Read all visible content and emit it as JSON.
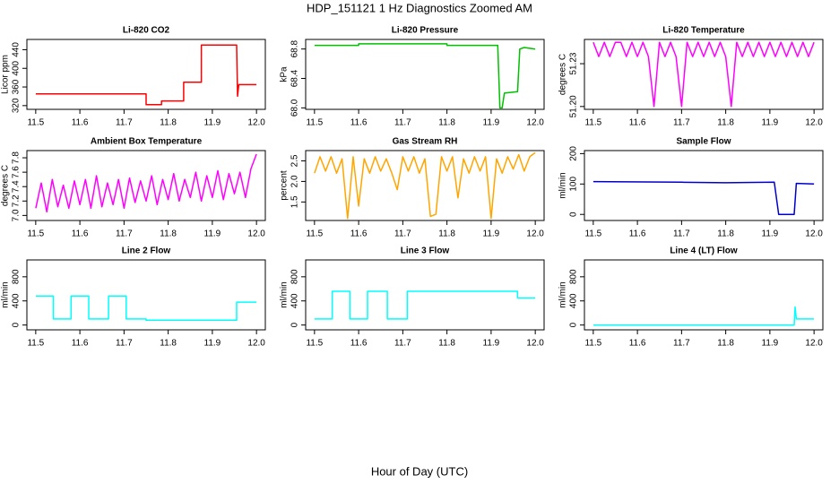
{
  "title": "HDP_151121  1 Hz Diagnostics Zoomed AM",
  "xlabel": "Hour of Day (UTC)",
  "chart_data": [
    {
      "type": "line",
      "title": "Li-820 CO2",
      "ylabel": "Licor ppm",
      "color": "#ff0000",
      "x": [
        11.5,
        11.75,
        11.75,
        11.785,
        11.785,
        11.835,
        11.835,
        11.875,
        11.875,
        11.955,
        11.957,
        11.96,
        12.0
      ],
      "values": [
        345,
        345,
        322,
        322,
        330,
        330,
        370,
        370,
        450,
        450,
        340,
        365,
        365
      ],
      "xlim": [
        11.48,
        12.02
      ],
      "ylim": [
        312,
        462
      ],
      "xticks": [
        11.5,
        11.6,
        11.7,
        11.8,
        11.9,
        {
          "value": 12.0,
          "label": "12.0"
        }
      ],
      "yticks": [
        320,
        360,
        400,
        440
      ]
    },
    {
      "type": "line",
      "title": "Li-820 Pressure",
      "ylabel": "kPa",
      "color": "#00c000",
      "x": [
        11.5,
        11.6,
        11.6,
        11.8,
        11.8,
        11.915,
        11.92,
        11.925,
        11.93,
        11.96,
        11.965,
        11.975,
        12.0
      ],
      "values": [
        68.85,
        68.85,
        68.87,
        68.87,
        68.85,
        68.85,
        68.0,
        68.0,
        68.2,
        68.22,
        68.8,
        68.82,
        68.8
      ],
      "xlim": [
        11.48,
        12.02
      ],
      "ylim": [
        67.98,
        68.93
      ],
      "xticks": [
        11.5,
        11.6,
        11.7,
        11.8,
        11.9,
        {
          "value": 12.0,
          "label": "12.0"
        }
      ],
      "yticks": [
        {
          "value": 68.0,
          "label": "68.0"
        },
        68.4,
        68.8
      ]
    },
    {
      "type": "line",
      "title": "Li-820 Temperature",
      "ylabel": "degrees C",
      "color": "#ff00ff",
      "x": [
        11.5,
        11.5125,
        11.525,
        11.5375,
        11.55,
        11.5625,
        11.575,
        11.5875,
        11.6,
        11.6125,
        11.625,
        11.6375,
        11.65,
        11.6625,
        11.675,
        11.6875,
        11.7,
        11.7125,
        11.725,
        11.7375,
        11.75,
        11.7625,
        11.775,
        11.7875,
        11.8,
        11.8125,
        11.825,
        11.8375,
        11.85,
        11.8625,
        11.875,
        11.8875,
        11.9,
        11.9125,
        11.925,
        11.9375,
        11.95,
        11.9625,
        11.975,
        11.9875,
        12.0
      ],
      "values": [
        51.245,
        51.235,
        51.245,
        51.235,
        51.245,
        51.245,
        51.235,
        51.245,
        51.235,
        51.245,
        51.235,
        51.2,
        51.245,
        51.235,
        51.245,
        51.235,
        51.2,
        51.245,
        51.235,
        51.245,
        51.235,
        51.245,
        51.235,
        51.245,
        51.235,
        51.2,
        51.245,
        51.235,
        51.245,
        51.235,
        51.245,
        51.235,
        51.245,
        51.235,
        51.245,
        51.235,
        51.245,
        51.235,
        51.245,
        51.235,
        51.245
      ],
      "xlim": [
        11.48,
        12.02
      ],
      "ylim": [
        51.198,
        51.247
      ],
      "xticks": [
        11.5,
        11.6,
        11.7,
        11.8,
        11.9,
        {
          "value": 12.0,
          "label": "12.0"
        }
      ],
      "yticks": [
        {
          "value": 51.2,
          "label": "51.20"
        },
        51.23
      ]
    },
    {
      "type": "line",
      "title": "Ambient Box Temperature",
      "ylabel": "degrees C",
      "color": "#ff00ff",
      "x": [
        11.5,
        11.5125,
        11.525,
        11.5375,
        11.55,
        11.5625,
        11.575,
        11.5875,
        11.6,
        11.6125,
        11.625,
        11.6375,
        11.65,
        11.6625,
        11.675,
        11.6875,
        11.7,
        11.7125,
        11.725,
        11.7375,
        11.75,
        11.7625,
        11.775,
        11.7875,
        11.8,
        11.8125,
        11.825,
        11.8375,
        11.85,
        11.8625,
        11.875,
        11.8875,
        11.9,
        11.9125,
        11.925,
        11.9375,
        11.95,
        11.9625,
        11.975,
        11.9875,
        12.0
      ],
      "values": [
        7.1,
        7.45,
        7.05,
        7.5,
        7.12,
        7.42,
        7.1,
        7.48,
        7.15,
        7.5,
        7.1,
        7.55,
        7.12,
        7.45,
        7.15,
        7.5,
        7.1,
        7.52,
        7.18,
        7.48,
        7.2,
        7.55,
        7.15,
        7.5,
        7.22,
        7.58,
        7.2,
        7.5,
        7.25,
        7.6,
        7.2,
        7.55,
        7.25,
        7.62,
        7.22,
        7.58,
        7.3,
        7.6,
        7.25,
        7.65,
        7.85
      ],
      "xlim": [
        11.48,
        12.02
      ],
      "ylim": [
        6.93,
        7.9
      ],
      "xticks": [
        11.5,
        11.6,
        11.7,
        11.8,
        11.9,
        {
          "value": 12.0,
          "label": "12.0"
        }
      ],
      "yticks": [
        {
          "value": 7.0,
          "label": "7.0"
        },
        7.2,
        7.4,
        7.6,
        7.8
      ]
    },
    {
      "type": "line",
      "title": "Gas Stream RH",
      "ylabel": "percent",
      "color": "#ffa500",
      "x": [
        11.5,
        11.5125,
        11.525,
        11.5375,
        11.55,
        11.5625,
        11.575,
        11.5875,
        11.6,
        11.6125,
        11.625,
        11.6375,
        11.65,
        11.6625,
        11.675,
        11.6875,
        11.7,
        11.7125,
        11.725,
        11.7375,
        11.75,
        11.7625,
        11.775,
        11.7875,
        11.8,
        11.8125,
        11.825,
        11.8375,
        11.85,
        11.8625,
        11.875,
        11.8875,
        11.9,
        11.9125,
        11.925,
        11.9375,
        11.95,
        11.9625,
        11.975,
        11.9875,
        12.0
      ],
      "values": [
        2.2,
        2.6,
        2.25,
        2.6,
        2.2,
        2.55,
        1.1,
        2.6,
        1.4,
        2.55,
        2.2,
        2.6,
        2.25,
        2.55,
        2.2,
        1.8,
        2.6,
        2.25,
        2.6,
        2.2,
        2.55,
        1.15,
        1.2,
        2.6,
        2.25,
        2.6,
        1.6,
        2.55,
        2.2,
        2.6,
        2.25,
        2.6,
        1.1,
        2.55,
        2.2,
        2.6,
        2.3,
        2.65,
        2.25,
        2.6,
        2.7
      ],
      "xlim": [
        11.48,
        12.02
      ],
      "ylim": [
        1.05,
        2.75
      ],
      "xticks": [
        11.5,
        11.6,
        11.7,
        11.8,
        11.9,
        {
          "value": 12.0,
          "label": "12.0"
        }
      ],
      "yticks": [
        1.5,
        {
          "value": 2.0,
          "label": "2.0"
        },
        2.5
      ]
    },
    {
      "type": "line",
      "title": "Sample Flow",
      "ylabel": "ml/min",
      "color": "#0000cc",
      "x": [
        11.5,
        11.7,
        11.8,
        11.91,
        11.92,
        11.955,
        11.96,
        12.0
      ],
      "values": [
        108,
        106,
        104,
        106,
        0,
        0,
        102,
        100
      ],
      "xlim": [
        11.48,
        12.02
      ],
      "ylim": [
        -20,
        210
      ],
      "xticks": [
        11.5,
        11.6,
        11.7,
        11.8,
        11.9,
        {
          "value": 12.0,
          "label": "12.0"
        }
      ],
      "yticks": [
        0,
        100,
        200
      ]
    },
    {
      "type": "line",
      "title": "Line 2 Flow",
      "ylabel": "ml/min",
      "color": "#00ffff",
      "x": [
        11.5,
        11.54,
        11.54,
        11.58,
        11.58,
        11.62,
        11.62,
        11.665,
        11.665,
        11.705,
        11.705,
        11.75,
        11.75,
        11.955,
        11.955,
        12.0
      ],
      "values": [
        480,
        480,
        100,
        100,
        480,
        480,
        100,
        100,
        480,
        480,
        100,
        100,
        80,
        80,
        380,
        380
      ],
      "xlim": [
        11.48,
        12.02
      ],
      "ylim": [
        -80,
        1080
      ],
      "xticks": [
        11.5,
        11.6,
        11.7,
        11.8,
        11.9,
        {
          "value": 12.0,
          "label": "12.0"
        }
      ],
      "yticks": [
        0,
        400,
        800
      ]
    },
    {
      "type": "line",
      "title": "Line 3 Flow",
      "ylabel": "ml/min",
      "color": "#00ffff",
      "x": [
        11.5,
        11.54,
        11.54,
        11.58,
        11.58,
        11.62,
        11.62,
        11.665,
        11.665,
        11.71,
        11.71,
        11.96,
        11.96,
        12.0
      ],
      "values": [
        100,
        100,
        560,
        560,
        100,
        100,
        560,
        560,
        100,
        100,
        560,
        560,
        450,
        450
      ],
      "xlim": [
        11.48,
        12.02
      ],
      "ylim": [
        -80,
        1080
      ],
      "xticks": [
        11.5,
        11.6,
        11.7,
        11.8,
        11.9,
        {
          "value": 12.0,
          "label": "12.0"
        }
      ],
      "yticks": [
        0,
        400,
        800
      ]
    },
    {
      "type": "line",
      "title": "Line 4 (LT) Flow",
      "ylabel": "ml/min",
      "color": "#00ffff",
      "x": [
        11.5,
        11.955,
        11.957,
        11.96,
        12.0
      ],
      "values": [
        0,
        0,
        300,
        100,
        100
      ],
      "xlim": [
        11.48,
        12.02
      ],
      "ylim": [
        -80,
        1080
      ],
      "xticks": [
        11.5,
        11.6,
        11.7,
        11.8,
        11.9,
        {
          "value": 12.0,
          "label": "12.0"
        }
      ],
      "yticks": [
        0,
        400,
        800
      ]
    }
  ]
}
